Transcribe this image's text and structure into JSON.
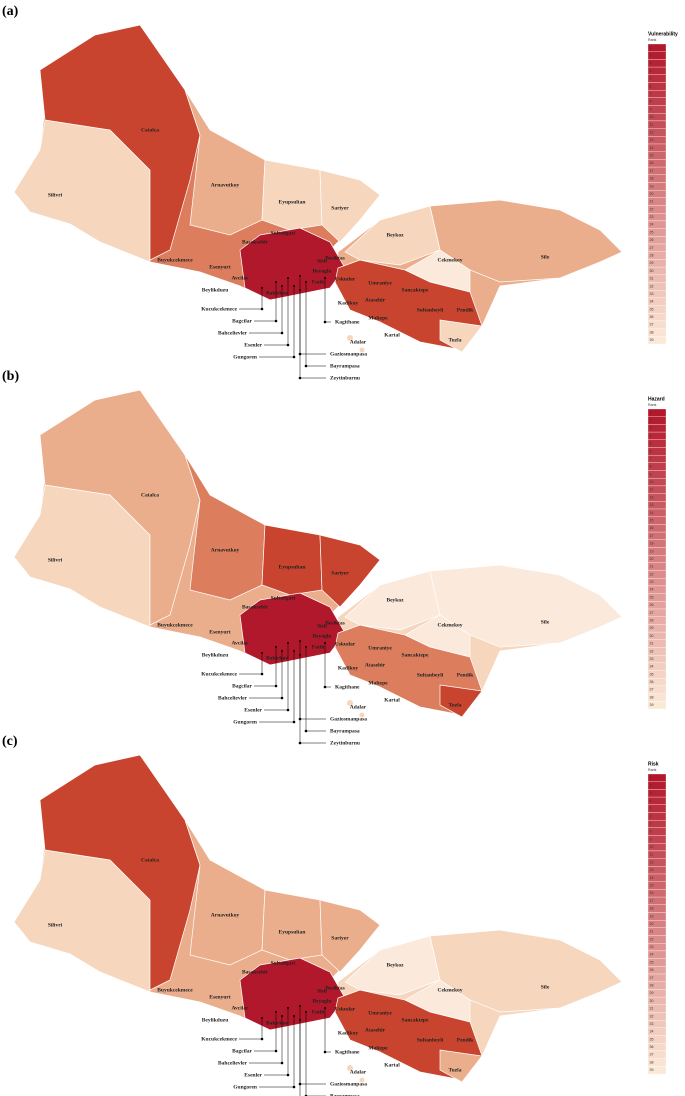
{
  "panels": [
    {
      "label": "(a)",
      "legend_title": "Vulnerability",
      "legend_subtitle": "Rank"
    },
    {
      "label": "(b)",
      "legend_title": "Hazard",
      "legend_subtitle": "Rank"
    },
    {
      "label": "(c)",
      "legend_title": "Risk",
      "legend_subtitle": "Rank"
    }
  ],
  "ranks": [
    1,
    2,
    3,
    4,
    5,
    6,
    7,
    8,
    9,
    10,
    11,
    12,
    13,
    14,
    15,
    16,
    17,
    18,
    19,
    20,
    21,
    22,
    23,
    24,
    25,
    26,
    27,
    28,
    29,
    30,
    31,
    32,
    33,
    34,
    35,
    36,
    37,
    38,
    39
  ],
  "districts": [
    "Catalca",
    "Silivri",
    "Arnavutkoy",
    "Eyupsultan",
    "Sariyer",
    "Beykoz",
    "Sile",
    "Cekmekoy",
    "Buyukcekmece",
    "Basaksehir",
    "Sultangazi",
    "Esenyurt",
    "Avcilar",
    "Beylikduzu",
    "Bakirkoy",
    "Fatih",
    "Beyoglu",
    "Sisli",
    "Besiktas",
    "Uskudar",
    "Umraniye",
    "Atasehir",
    "Kadikoy",
    "Sancaktepe",
    "Sultanbeyli",
    "Maltepe",
    "Kartal",
    "Pendik",
    "Tuzla",
    "Adalar",
    "Kucukcekmece",
    "Bagcilar",
    "Bahcelievler",
    "Esenler",
    "Gungoren",
    "Kagithane",
    "Gaziosmanpasa",
    "Bayrampasa",
    "Zeytinburnu"
  ]
}
